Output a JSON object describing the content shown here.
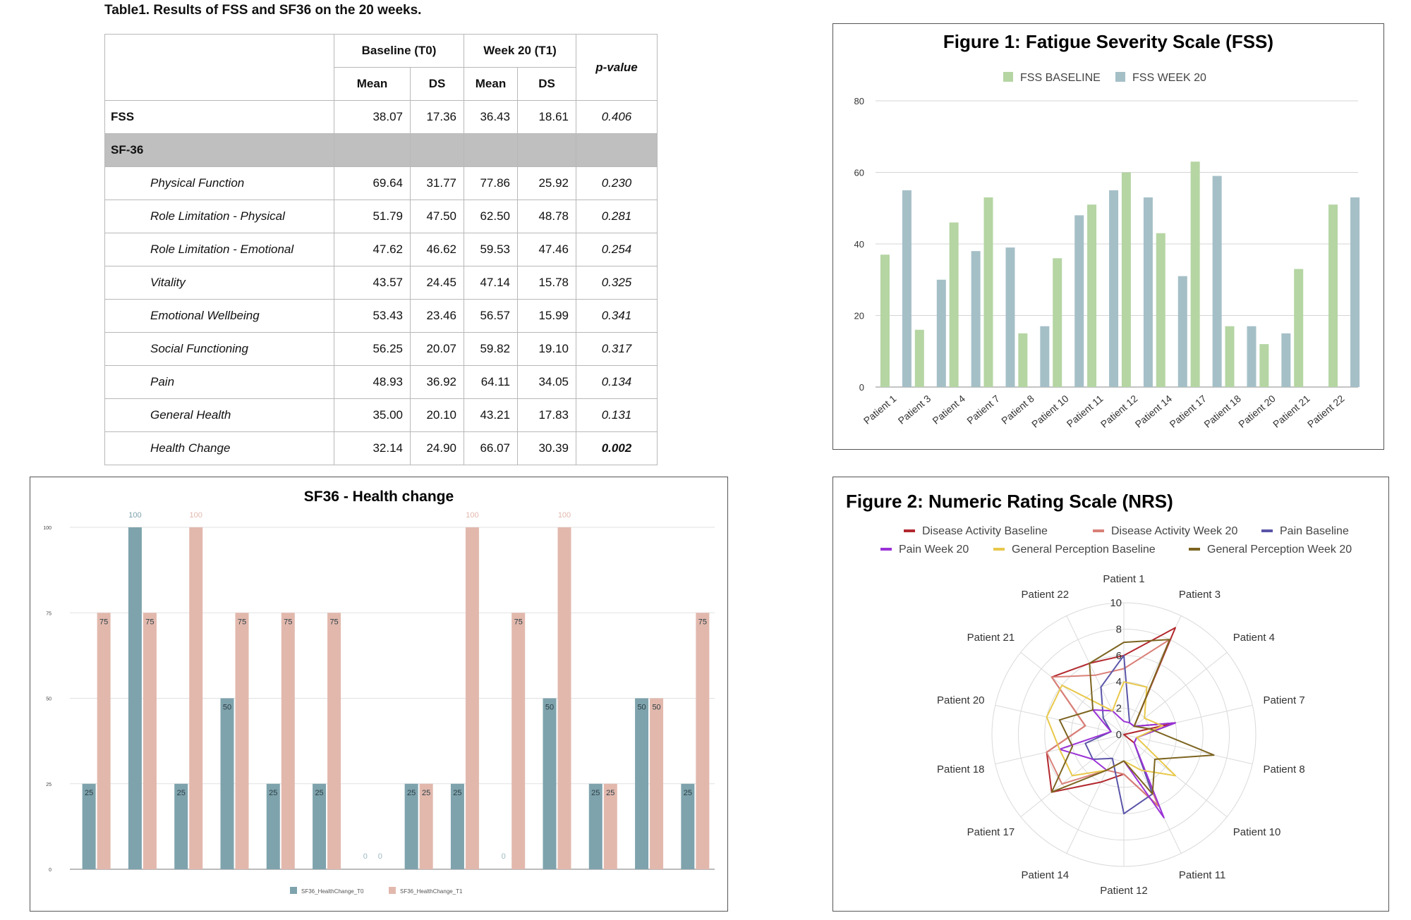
{
  "table": {
    "caption": "Table1. Results of FSS and SF36 on the 20 weeks.",
    "headers": {
      "baseline": "Baseline (T0)",
      "week20": "Week 20 (T1)",
      "pvalue": "p-value",
      "mean": "Mean",
      "ds": "DS"
    },
    "fss": {
      "label": "FSS",
      "values": [
        "38.07",
        "17.36",
        "36.43",
        "18.61",
        "0.406"
      ]
    },
    "section_label": "SF-36",
    "rows": [
      {
        "label": "Physical Function",
        "values": [
          "69.64",
          "31.77",
          "77.86",
          "25.92",
          "0.230"
        ],
        "bold_p": false
      },
      {
        "label": "Role Limitation - Physical",
        "values": [
          "51.79",
          "47.50",
          "62.50",
          "48.78",
          "0.281"
        ],
        "bold_p": false
      },
      {
        "label": "Role Limitation - Emotional",
        "values": [
          "47.62",
          "46.62",
          "59.53",
          "47.46",
          "0.254"
        ],
        "bold_p": false
      },
      {
        "label": "Vitality",
        "values": [
          "43.57",
          "24.45",
          "47.14",
          "15.78",
          "0.325"
        ],
        "bold_p": false
      },
      {
        "label": "Emotional Wellbeing",
        "values": [
          "53.43",
          "23.46",
          "56.57",
          "15.99",
          "0.341"
        ],
        "bold_p": false
      },
      {
        "label": "Social Functioning",
        "values": [
          "56.25",
          "20.07",
          "59.82",
          "19.10",
          "0.317"
        ],
        "bold_p": false
      },
      {
        "label": "Pain",
        "values": [
          "48.93",
          "36.92",
          "64.11",
          "34.05",
          "0.134"
        ],
        "bold_p": false
      },
      {
        "label": "General Health",
        "values": [
          "35.00",
          "20.10",
          "43.21",
          "17.83",
          "0.131"
        ],
        "bold_p": false
      },
      {
        "label": "Health Change",
        "values": [
          "32.14",
          "24.90",
          "66.07",
          "30.39",
          "0.002"
        ],
        "bold_p": true
      }
    ]
  },
  "chart_data": [
    {
      "type": "bar",
      "title": "Figure 1: Fatigue Severity Scale (FSS)",
      "categories": [
        "Patient 1",
        "Patient 3",
        "Patient 4",
        "Patient 7",
        "Patient 8",
        "Patient 10",
        "Patient 11",
        "Patient 12",
        "Patient 14",
        "Patient 17",
        "Patient 18",
        "Patient 20",
        "Patient 21",
        "Patient 22"
      ],
      "series": [
        {
          "name": "FSS BASELINE",
          "color": "#b5d5a3",
          "values": [
            37,
            16,
            46,
            53,
            15,
            36,
            51,
            60,
            43,
            63,
            17,
            12,
            33,
            51
          ]
        },
        {
          "name": "FSS WEEK 20",
          "color": "#a5bfc7",
          "values": [
            55,
            30,
            38,
            39,
            17,
            48,
            55,
            53,
            31,
            59,
            17,
            15,
            0,
            53
          ]
        }
      ],
      "ylim": [
        0,
        80
      ],
      "yticks": [
        "0",
        "20",
        "40",
        "60",
        "80"
      ],
      "legend": "top-center"
    },
    {
      "type": "bar",
      "title": "SF36 - Health change",
      "categories": [
        "",
        "",
        "",
        "",
        "",
        "",
        "",
        "",
        "",
        "",
        "",
        "",
        "",
        ""
      ],
      "series": [
        {
          "name": "SF36_HealthChange_T0",
          "color": "#7ea3ad",
          "values": [
            25,
            100,
            25,
            50,
            25,
            25,
            0,
            25,
            25,
            0,
            50,
            25,
            50,
            25
          ]
        },
        {
          "name": "SF36_HealthChange_T1",
          "color": "#e2b8ad",
          "values": [
            75,
            75,
            100,
            75,
            75,
            75,
            0,
            25,
            100,
            75,
            100,
            25,
            50,
            75
          ]
        }
      ],
      "ylim": [
        0,
        100
      ],
      "yticks": [
        "0",
        "25",
        "50",
        "75",
        "100"
      ],
      "legend": "bottom-center"
    },
    {
      "type": "radar",
      "title": "Figure 2: Numeric Rating Scale (NRS)",
      "categories": [
        "Patient 1",
        "Patient 3",
        "Patient 4",
        "Patient 7",
        "Patient 8",
        "Patient 10",
        "Patient 11",
        "Patient 12",
        "Patient 14",
        "Patient 17",
        "Patient 18",
        "Patient 20",
        "Patient 21",
        "Patient 22"
      ],
      "rlim": [
        0,
        10
      ],
      "rticks": [
        "0",
        "2",
        "4",
        "6",
        "8",
        "10"
      ],
      "series": [
        {
          "name": "Disease Activity Baseline",
          "color": "#b2282e",
          "values": [
            6,
            9,
            1,
            4,
            0,
            1,
            6,
            3,
            4,
            7,
            6,
            3,
            7,
            6
          ]
        },
        {
          "name": "Disease Activity Week 20",
          "color": "#d98078",
          "values": [
            5,
            8,
            1,
            4,
            1,
            1,
            6,
            3,
            3,
            6,
            6,
            3,
            7,
            5
          ]
        },
        {
          "name": "Pain Baseline",
          "color": "#5a55a8",
          "values": [
            6,
            1,
            1,
            4,
            1,
            1,
            5,
            6,
            2,
            3,
            3,
            1,
            2,
            4
          ]
        },
        {
          "name": "Pain Week 20",
          "color": "#9a32d6",
          "values": [
            1,
            1,
            1,
            4,
            1,
            1,
            7,
            2,
            3,
            3,
            5,
            1,
            3,
            2
          ]
        },
        {
          "name": "General Perception Baseline",
          "color": "#e8c84a",
          "values": [
            4,
            4,
            2,
            3,
            1,
            5,
            3,
            2,
            3,
            5,
            5,
            6,
            6,
            2
          ]
        },
        {
          "name": "General Perception Week 20",
          "color": "#7c6420",
          "values": [
            7,
            8,
            1,
            2,
            7,
            3,
            5,
            2,
            3,
            7,
            4,
            5,
            3,
            6
          ]
        }
      ],
      "legend": "top"
    }
  ]
}
